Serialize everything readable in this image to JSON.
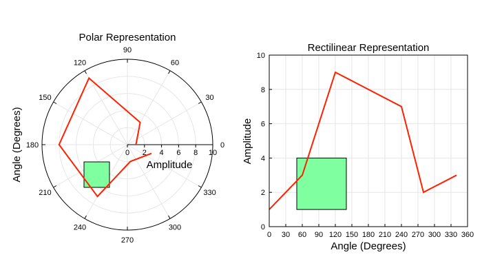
{
  "chart_data": [
    {
      "type": "polar-line",
      "title": "Polar Representation",
      "xlabel": "Amplitude",
      "ylabel": "Angle (Degrees)",
      "r_ticks": [
        "0",
        "2",
        "4",
        "6",
        "8",
        "10"
      ],
      "r_max": 10,
      "theta_ticks": [
        "0",
        "30",
        "60",
        "90",
        "120",
        "150",
        "180",
        "210",
        "240",
        "270",
        "300",
        "330"
      ],
      "series": [
        {
          "theta_deg": [
            0,
            60,
            120,
            180,
            240,
            280,
            340
          ],
          "r": [
            1,
            3,
            9,
            8,
            7,
            2,
            3
          ],
          "color": "#ff2000"
        }
      ],
      "patch": {
        "x_min": 50,
        "x_max": 140,
        "y_min": 1,
        "y_max": 4,
        "color": "#80ffa0"
      }
    },
    {
      "type": "line",
      "title": "Rectilinear Representation",
      "xlabel": "Angle (Degrees)",
      "ylabel": "Amplitude",
      "xlim": [
        0,
        360
      ],
      "ylim": [
        0,
        10
      ],
      "x_ticks": [
        "0",
        "30",
        "60",
        "90",
        "120",
        "150",
        "180",
        "210",
        "240",
        "270",
        "300",
        "330",
        "360"
      ],
      "y_ticks": [
        "0",
        "2",
        "4",
        "6",
        "8",
        "10"
      ],
      "series": [
        {
          "x": [
            0,
            60,
            120,
            240,
            280,
            340
          ],
          "y": [
            1,
            3,
            9,
            7,
            2,
            3
          ],
          "color": "#ff2000"
        }
      ],
      "patch": {
        "x_min": 50,
        "x_max": 140,
        "y_min": 1,
        "y_max": 4,
        "color": "#80ffa0"
      }
    }
  ]
}
